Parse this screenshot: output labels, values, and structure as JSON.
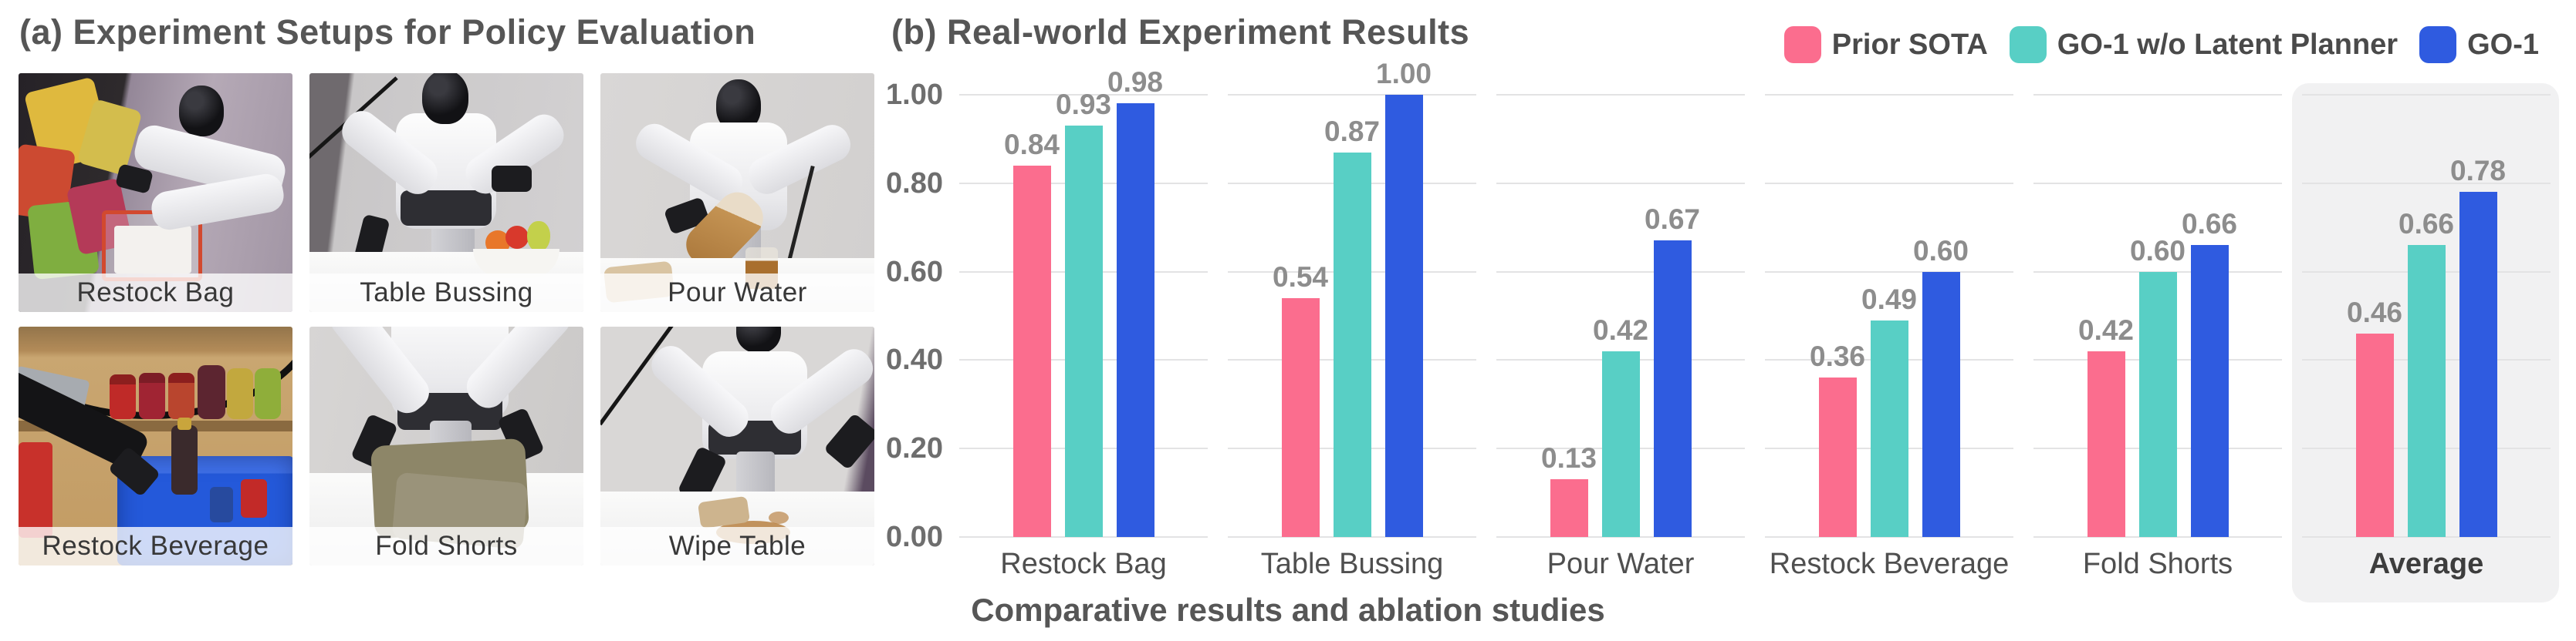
{
  "figure": {
    "panel_a_title": "(a) Experiment Setups for Policy Evaluation",
    "panel_b_title": "(b) Real-world Experiment Results",
    "caption": "Comparative results and ablation studies"
  },
  "photos": [
    {
      "label": "Restock Bag"
    },
    {
      "label": "Table Bussing"
    },
    {
      "label": "Pour Water"
    },
    {
      "label": "Restock Beverage"
    },
    {
      "label": "Fold Shorts"
    },
    {
      "label": "Wipe Table"
    }
  ],
  "chart_data": {
    "type": "bar",
    "title": "(b) Real-world Experiment Results",
    "categories": [
      "Restock Bag",
      "Table Bussing",
      "Pour Water",
      "Restock Beverage",
      "Fold Shorts",
      "Average"
    ],
    "series": [
      {
        "name": "Prior SOTA",
        "color": "#FB6D8E",
        "values": [
          0.84,
          0.54,
          0.13,
          0.36,
          0.42,
          0.46
        ]
      },
      {
        "name": "GO-1 w/o Latent Planner",
        "color": "#58CFC5",
        "values": [
          0.93,
          0.87,
          0.42,
          0.49,
          0.6,
          0.66
        ]
      },
      {
        "name": "GO-1",
        "color": "#2F5BE0",
        "values": [
          0.98,
          1.0,
          0.67,
          0.6,
          0.66,
          0.78
        ]
      }
    ],
    "yticks": [
      0.0,
      0.2,
      0.4,
      0.6,
      0.8,
      1.0
    ],
    "ylim": [
      0,
      1.0
    ],
    "grid": true,
    "legend_position": "top-right",
    "highlight_category": "Average",
    "xlabel": "",
    "ylabel": ""
  }
}
